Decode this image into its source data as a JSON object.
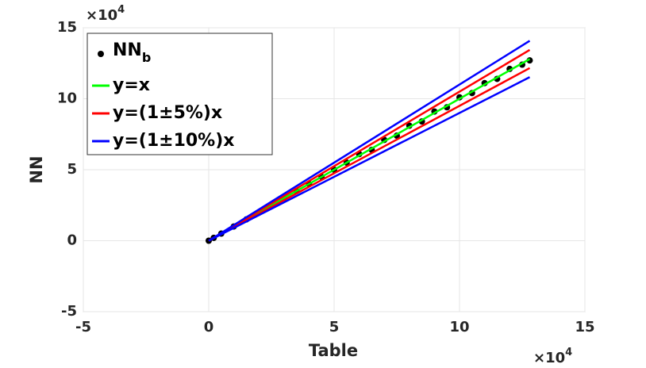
{
  "chart_data": {
    "type": "scatter",
    "xlabel": "Table",
    "ylabel": "NN",
    "x_multiplier": {
      "base": "×10",
      "exponent": "4"
    },
    "y_multiplier": {
      "base": "×10",
      "exponent": "4"
    },
    "xlim": [
      -5,
      15
    ],
    "ylim": [
      -5,
      15
    ],
    "xticks": [
      -5,
      0,
      5,
      10,
      15
    ],
    "yticks": [
      -5,
      0,
      5,
      10,
      15
    ],
    "grid": true,
    "legend": "upper left",
    "points": {
      "name": "NN",
      "name_subscript": "b",
      "color": "#000000",
      "x": [
        0,
        0.2,
        0.5,
        1,
        1.5,
        2,
        2.5,
        3,
        3.5,
        4,
        4.5,
        5,
        5.5,
        6,
        6.5,
        7,
        7.5,
        8,
        8.5,
        9,
        9.5,
        10,
        10.5,
        11,
        11.5,
        12,
        12.5,
        12.8
      ],
      "values": [
        0,
        0.2,
        0.5,
        1,
        1.5,
        2,
        2.5,
        3,
        3.5,
        4,
        4.5,
        5,
        5.5,
        6.1,
        6.4,
        7.1,
        7.4,
        8.1,
        8.4,
        9.1,
        9.4,
        10.1,
        10.4,
        11.1,
        11.4,
        12.1,
        12.4,
        12.7
      ]
    },
    "series": [
      {
        "name": "y=x",
        "color": "#00ff00",
        "lines": [
          {
            "x": [
              0,
              12.8
            ],
            "values": [
              0,
              12.8
            ]
          }
        ]
      },
      {
        "name": "y=(1±5%)x",
        "color": "#ff0000",
        "lines": [
          {
            "x": [
              0,
              12.8
            ],
            "values": [
              0,
              13.44
            ]
          },
          {
            "x": [
              0,
              12.8
            ],
            "values": [
              0,
              12.16
            ]
          }
        ]
      },
      {
        "name": "y=(1±10%)x",
        "color": "#0000ff",
        "lines": [
          {
            "x": [
              0,
              12.8
            ],
            "values": [
              0,
              14.08
            ]
          },
          {
            "x": [
              0,
              12.8
            ],
            "values": [
              0,
              11.52
            ]
          }
        ]
      }
    ]
  }
}
